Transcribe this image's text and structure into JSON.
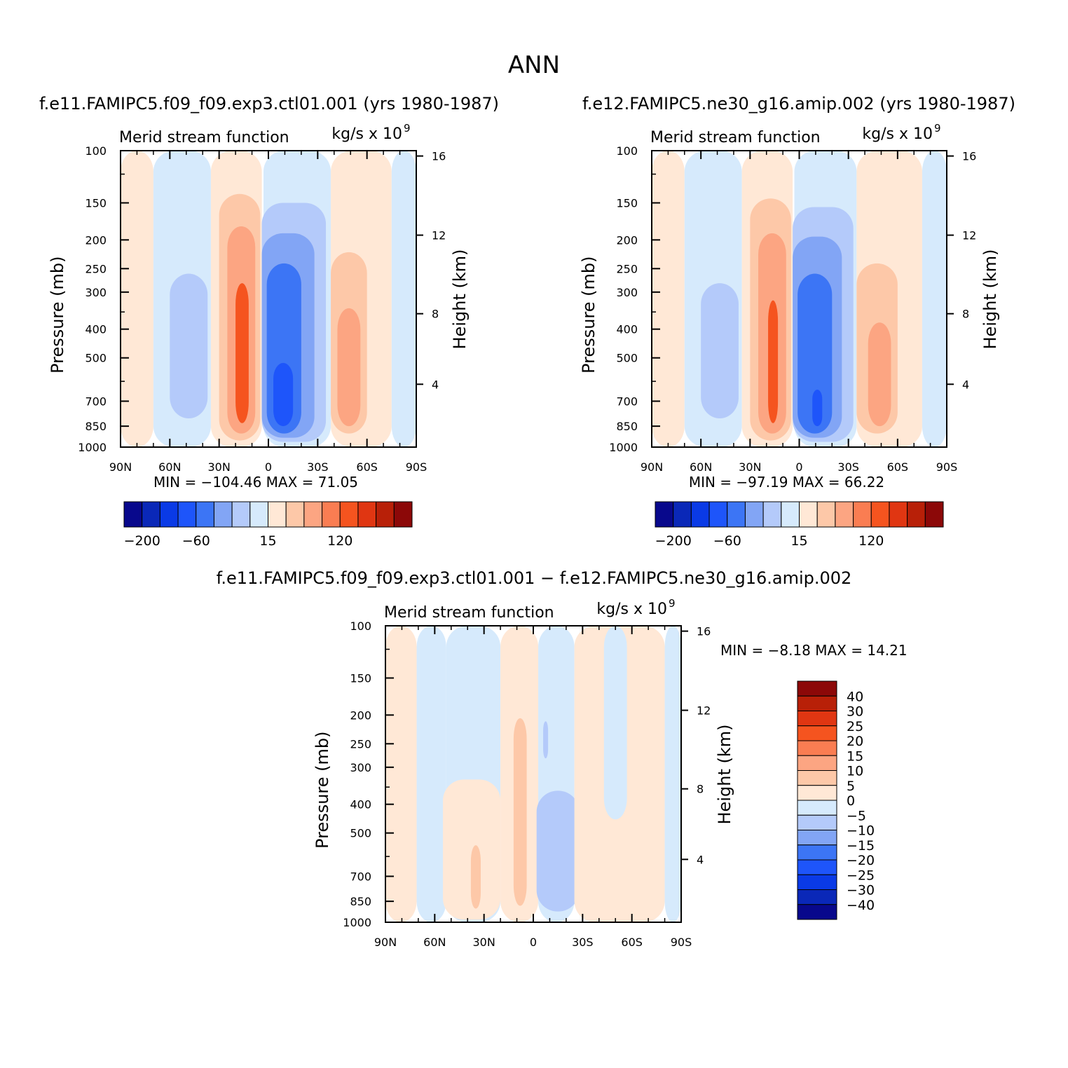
{
  "figure": {
    "title": "ANN"
  },
  "colors": {
    "palette_14": [
      "#08088c",
      "#0a28b8",
      "#0a3ae6",
      "#1e55fa",
      "#3c75f5",
      "#82a5f5",
      "#b4cafa",
      "#d6eafc",
      "#ffe8d6",
      "#fdc8a8",
      "#fca582",
      "#fa7d52",
      "#f5541f",
      "#e03612",
      "#b82008",
      "#8c0808"
    ],
    "diff_levels_colors": [
      "#8c0808",
      "#b82008",
      "#e03612",
      "#f5541f",
      "#fa7d52",
      "#fca582",
      "#fdc8a8",
      "#ffe8d6",
      "#d6eafc",
      "#b4cafa",
      "#82a5f5",
      "#3c75f5",
      "#1e55fa",
      "#0a3ae6",
      "#0a28b8",
      "#08088c"
    ]
  },
  "chart_data": [
    {
      "type": "heatmap",
      "panel_title": "f.e11.FAMIPC5.f09_f09.exp3.ctl01.001 (yrs 1980-1987)",
      "left_string": "Merid stream function",
      "right_string": "kg/s x 10",
      "right_string_sup": "9",
      "ylabel": "Pressure (mb)",
      "ylabel_right": "Height (km)",
      "x_ticks": [
        "90N",
        "60N",
        "30N",
        "0",
        "30S",
        "60S",
        "90S"
      ],
      "y_ticks": [
        "100",
        "150",
        "200",
        "250",
        "300",
        "400",
        "500",
        "700",
        "850",
        "1000"
      ],
      "y_ticks_right": [
        "16",
        "12",
        "8",
        "4"
      ],
      "stats": "MIN = −104.46   MAX =   71.05",
      "min": -104.46,
      "max": 71.05,
      "colorbar_labels": [
        "−200",
        "−60",
        "15",
        "120"
      ],
      "colorbar_levels": [
        -200,
        -150,
        -100,
        -80,
        -60,
        -40,
        -20,
        0,
        15,
        30,
        45,
        60,
        80,
        120,
        160
      ],
      "cells": [
        {
          "lat_from": 90,
          "lat_to": 70,
          "p_top": 100,
          "p_bot": 1000,
          "value": 5
        },
        {
          "lat_from": 70,
          "lat_to": 35,
          "p_top": 100,
          "p_bot": 1000,
          "value": -10
        },
        {
          "lat_from": 60,
          "lat_to": 37,
          "p_top": 260,
          "p_bot": 800,
          "value": -30
        },
        {
          "lat_from": 35,
          "lat_to": 4,
          "p_top": 100,
          "p_bot": 1000,
          "value": 5
        },
        {
          "lat_from": 30,
          "lat_to": 5,
          "p_top": 140,
          "p_bot": 950,
          "value": 20
        },
        {
          "lat_from": 25,
          "lat_to": 8,
          "p_top": 180,
          "p_bot": 900,
          "value": 40
        },
        {
          "lat_from": 20,
          "lat_to": 12,
          "p_top": 280,
          "p_bot": 830,
          "value": 60
        },
        {
          "lat_from": 3,
          "lat_to": -38,
          "p_top": 100,
          "p_bot": 1000,
          "value": -10
        },
        {
          "lat_from": 4,
          "lat_to": -35,
          "p_top": 150,
          "p_bot": 960,
          "value": -30
        },
        {
          "lat_from": 4,
          "lat_to": -28,
          "p_top": 190,
          "p_bot": 930,
          "value": -60
        },
        {
          "lat_from": 1,
          "lat_to": -20,
          "p_top": 240,
          "p_bot": 900,
          "value": -80
        },
        {
          "lat_from": -3,
          "lat_to": -15,
          "p_top": 520,
          "p_bot": 850,
          "value": -100
        },
        {
          "lat_from": -38,
          "lat_to": -75,
          "p_top": 100,
          "p_bot": 1000,
          "value": 5
        },
        {
          "lat_from": -38,
          "lat_to": -60,
          "p_top": 220,
          "p_bot": 900,
          "value": 20
        },
        {
          "lat_from": -42,
          "lat_to": -56,
          "p_top": 340,
          "p_bot": 850,
          "value": 40
        },
        {
          "lat_from": -75,
          "lat_to": -90,
          "p_top": 100,
          "p_bot": 1000,
          "value": -5
        }
      ]
    },
    {
      "type": "heatmap",
      "panel_title": "f.e12.FAMIPC5.ne30_g16.amip.002 (yrs 1980-1987)",
      "left_string": "Merid stream function",
      "right_string": "kg/s x 10",
      "right_string_sup": "9",
      "ylabel": "Pressure (mb)",
      "ylabel_right": "Height (km)",
      "x_ticks": [
        "90N",
        "60N",
        "30N",
        "0",
        "30S",
        "60S",
        "90S"
      ],
      "y_ticks": [
        "100",
        "150",
        "200",
        "250",
        "300",
        "400",
        "500",
        "700",
        "850",
        "1000"
      ],
      "y_ticks_right": [
        "16",
        "12",
        "8",
        "4"
      ],
      "stats": "MIN = −97.19   MAX =   66.22",
      "min": -97.19,
      "max": 66.22,
      "colorbar_labels": [
        "−200",
        "−60",
        "15",
        "120"
      ],
      "colorbar_levels": [
        -200,
        -150,
        -100,
        -80,
        -60,
        -40,
        -20,
        0,
        15,
        30,
        45,
        60,
        80,
        120,
        160
      ],
      "cells": [
        {
          "lat_from": 90,
          "lat_to": 70,
          "p_top": 100,
          "p_bot": 1000,
          "value": 5
        },
        {
          "lat_from": 70,
          "lat_to": 35,
          "p_top": 100,
          "p_bot": 1000,
          "value": -10
        },
        {
          "lat_from": 60,
          "lat_to": 37,
          "p_top": 280,
          "p_bot": 800,
          "value": -30
        },
        {
          "lat_from": 35,
          "lat_to": 4,
          "p_top": 100,
          "p_bot": 1000,
          "value": 5
        },
        {
          "lat_from": 30,
          "lat_to": 5,
          "p_top": 145,
          "p_bot": 950,
          "value": 20
        },
        {
          "lat_from": 25,
          "lat_to": 8,
          "p_top": 190,
          "p_bot": 900,
          "value": 40
        },
        {
          "lat_from": 19,
          "lat_to": 13,
          "p_top": 320,
          "p_bot": 830,
          "value": 60
        },
        {
          "lat_from": 3,
          "lat_to": -35,
          "p_top": 100,
          "p_bot": 1000,
          "value": -10
        },
        {
          "lat_from": 4,
          "lat_to": -33,
          "p_top": 155,
          "p_bot": 960,
          "value": -30
        },
        {
          "lat_from": 4,
          "lat_to": -26,
          "p_top": 195,
          "p_bot": 930,
          "value": -60
        },
        {
          "lat_from": 1,
          "lat_to": -20,
          "p_top": 260,
          "p_bot": 900,
          "value": -80
        },
        {
          "lat_from": -8,
          "lat_to": -14,
          "p_top": 640,
          "p_bot": 850,
          "value": -100
        },
        {
          "lat_from": -35,
          "lat_to": -75,
          "p_top": 100,
          "p_bot": 1000,
          "value": 5
        },
        {
          "lat_from": -35,
          "lat_to": -60,
          "p_top": 240,
          "p_bot": 900,
          "value": 20
        },
        {
          "lat_from": -42,
          "lat_to": -56,
          "p_top": 380,
          "p_bot": 850,
          "value": 40
        },
        {
          "lat_from": -75,
          "lat_to": -90,
          "p_top": 100,
          "p_bot": 1000,
          "value": -5
        }
      ]
    },
    {
      "type": "heatmap",
      "panel_title": "f.e11.FAMIPC5.f09_f09.exp3.ctl01.001 − f.e12.FAMIPC5.ne30_g16.amip.002",
      "left_string": "Merid stream function",
      "right_string": "kg/s x 10",
      "right_string_sup": "9",
      "ylabel": "Pressure (mb)",
      "ylabel_right": "Height (km)",
      "x_ticks": [
        "90N",
        "60N",
        "30N",
        "0",
        "30S",
        "60S",
        "90S"
      ],
      "y_ticks": [
        "100",
        "150",
        "200",
        "250",
        "300",
        "400",
        "500",
        "700",
        "850",
        "1000"
      ],
      "y_ticks_right": [
        "16",
        "12",
        "8",
        "4"
      ],
      "stats": "MIN =   −8.18   MAX =   14.21",
      "min": -8.18,
      "max": 14.21,
      "colorbar_labels": [
        "40",
        "30",
        "25",
        "20",
        "15",
        "10",
        "5",
        "0",
        "−5",
        "−10",
        "−15",
        "−20",
        "−25",
        "−30",
        "−40"
      ],
      "colorbar_levels": [
        40,
        30,
        25,
        20,
        15,
        10,
        5,
        0,
        -5,
        -10,
        -15,
        -20,
        -25,
        -30,
        -40
      ],
      "cells": [
        {
          "lat_from": 90,
          "lat_to": 71,
          "p_top": 100,
          "p_bot": 1000,
          "value": 2
        },
        {
          "lat_from": 71,
          "lat_to": 53,
          "p_top": 100,
          "p_bot": 1000,
          "value": -2
        },
        {
          "lat_from": 53,
          "lat_to": 20,
          "p_top": 100,
          "p_bot": 1000,
          "value": -2
        },
        {
          "lat_from": 55,
          "lat_to": 20,
          "p_top": 330,
          "p_bot": 980,
          "value": 2
        },
        {
          "lat_from": 38,
          "lat_to": 32,
          "p_top": 550,
          "p_bot": 900,
          "value": 6
        },
        {
          "lat_from": 20,
          "lat_to": -3,
          "p_top": 100,
          "p_bot": 1000,
          "value": 2
        },
        {
          "lat_from": 12,
          "lat_to": 4,
          "p_top": 205,
          "p_bot": 880,
          "value": 6
        },
        {
          "lat_from": -3,
          "lat_to": -25,
          "p_top": 100,
          "p_bot": 1000,
          "value": -2
        },
        {
          "lat_from": -6,
          "lat_to": -9,
          "p_top": 210,
          "p_bot": 280,
          "value": -6
        },
        {
          "lat_from": -2,
          "lat_to": -28,
          "p_top": 360,
          "p_bot": 920,
          "value": -6
        },
        {
          "lat_from": -25,
          "lat_to": -80,
          "p_top": 100,
          "p_bot": 1000,
          "value": 2
        },
        {
          "lat_from": -43,
          "lat_to": -57,
          "p_top": 100,
          "p_bot": 450,
          "value": -2
        },
        {
          "lat_from": -80,
          "lat_to": -90,
          "p_top": 100,
          "p_bot": 1000,
          "value": -2
        }
      ]
    }
  ]
}
